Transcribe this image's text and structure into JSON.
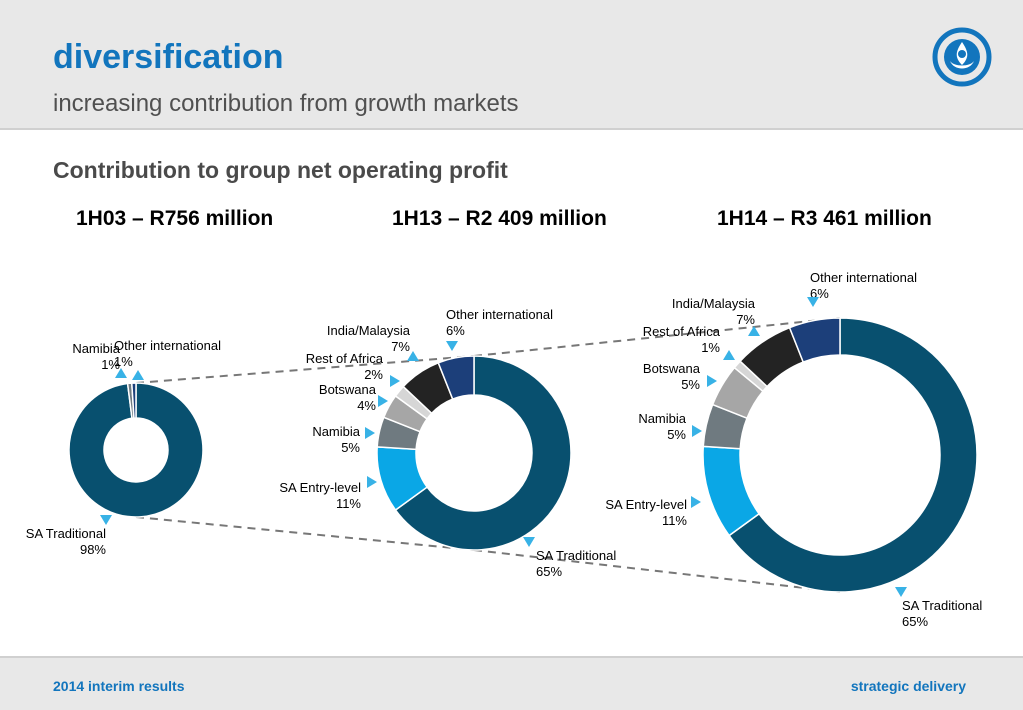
{
  "header": {
    "title": "diversification",
    "subtitle": "increasing contribution from growth markets"
  },
  "section_title": "Contribution to group net operating profit",
  "footer": {
    "left": "2014 interim results",
    "right": "strategic delivery"
  },
  "colors": {
    "brand": "#1275bd",
    "sa_traditional": "#08506f",
    "sa_entry_level": "#0aa7e6",
    "namibia": "#6f7a80",
    "botswana": "#a6a6a6",
    "rest_of_africa": "#d6d6d6",
    "india_malaysia": "#232323",
    "other_international": "#1c3f7a",
    "pointer": "#38b2e6"
  },
  "chart_data": [
    {
      "type": "pie",
      "title": "1H03 – R756 million",
      "segments": [
        {
          "name": "SA Traditional",
          "value": 98,
          "label": "98%"
        },
        {
          "name": "Namibia",
          "value": 1,
          "label": "1%"
        },
        {
          "name": "Other international",
          "value": 1,
          "label": "1%"
        }
      ]
    },
    {
      "type": "pie",
      "title": "1H13 – R2 409 million",
      "segments": [
        {
          "name": "SA Traditional",
          "value": 65,
          "label": "65%"
        },
        {
          "name": "SA Entry-level",
          "value": 11,
          "label": "11%"
        },
        {
          "name": "Namibia",
          "value": 5,
          "label": "5%"
        },
        {
          "name": "Botswana",
          "value": 4,
          "label": "4%"
        },
        {
          "name": "Rest of Africa",
          "value": 2,
          "label": "2%"
        },
        {
          "name": "India/Malaysia",
          "value": 7,
          "label": "7%"
        },
        {
          "name": "Other international",
          "value": 6,
          "label": "6%"
        }
      ]
    },
    {
      "type": "pie",
      "title": "1H14 – R3 461 million",
      "segments": [
        {
          "name": "SA Traditional",
          "value": 65,
          "label": "65%"
        },
        {
          "name": "SA Entry-level",
          "value": 11,
          "label": "11%"
        },
        {
          "name": "Namibia",
          "value": 5,
          "label": "5%"
        },
        {
          "name": "Botswana",
          "value": 5,
          "label": "5%"
        },
        {
          "name": "Rest of Africa",
          "value": 1,
          "label": "1%"
        },
        {
          "name": "India/Malaysia",
          "value": 7,
          "label": "7%"
        },
        {
          "name": "Other international",
          "value": 6,
          "label": "6%"
        }
      ]
    }
  ]
}
